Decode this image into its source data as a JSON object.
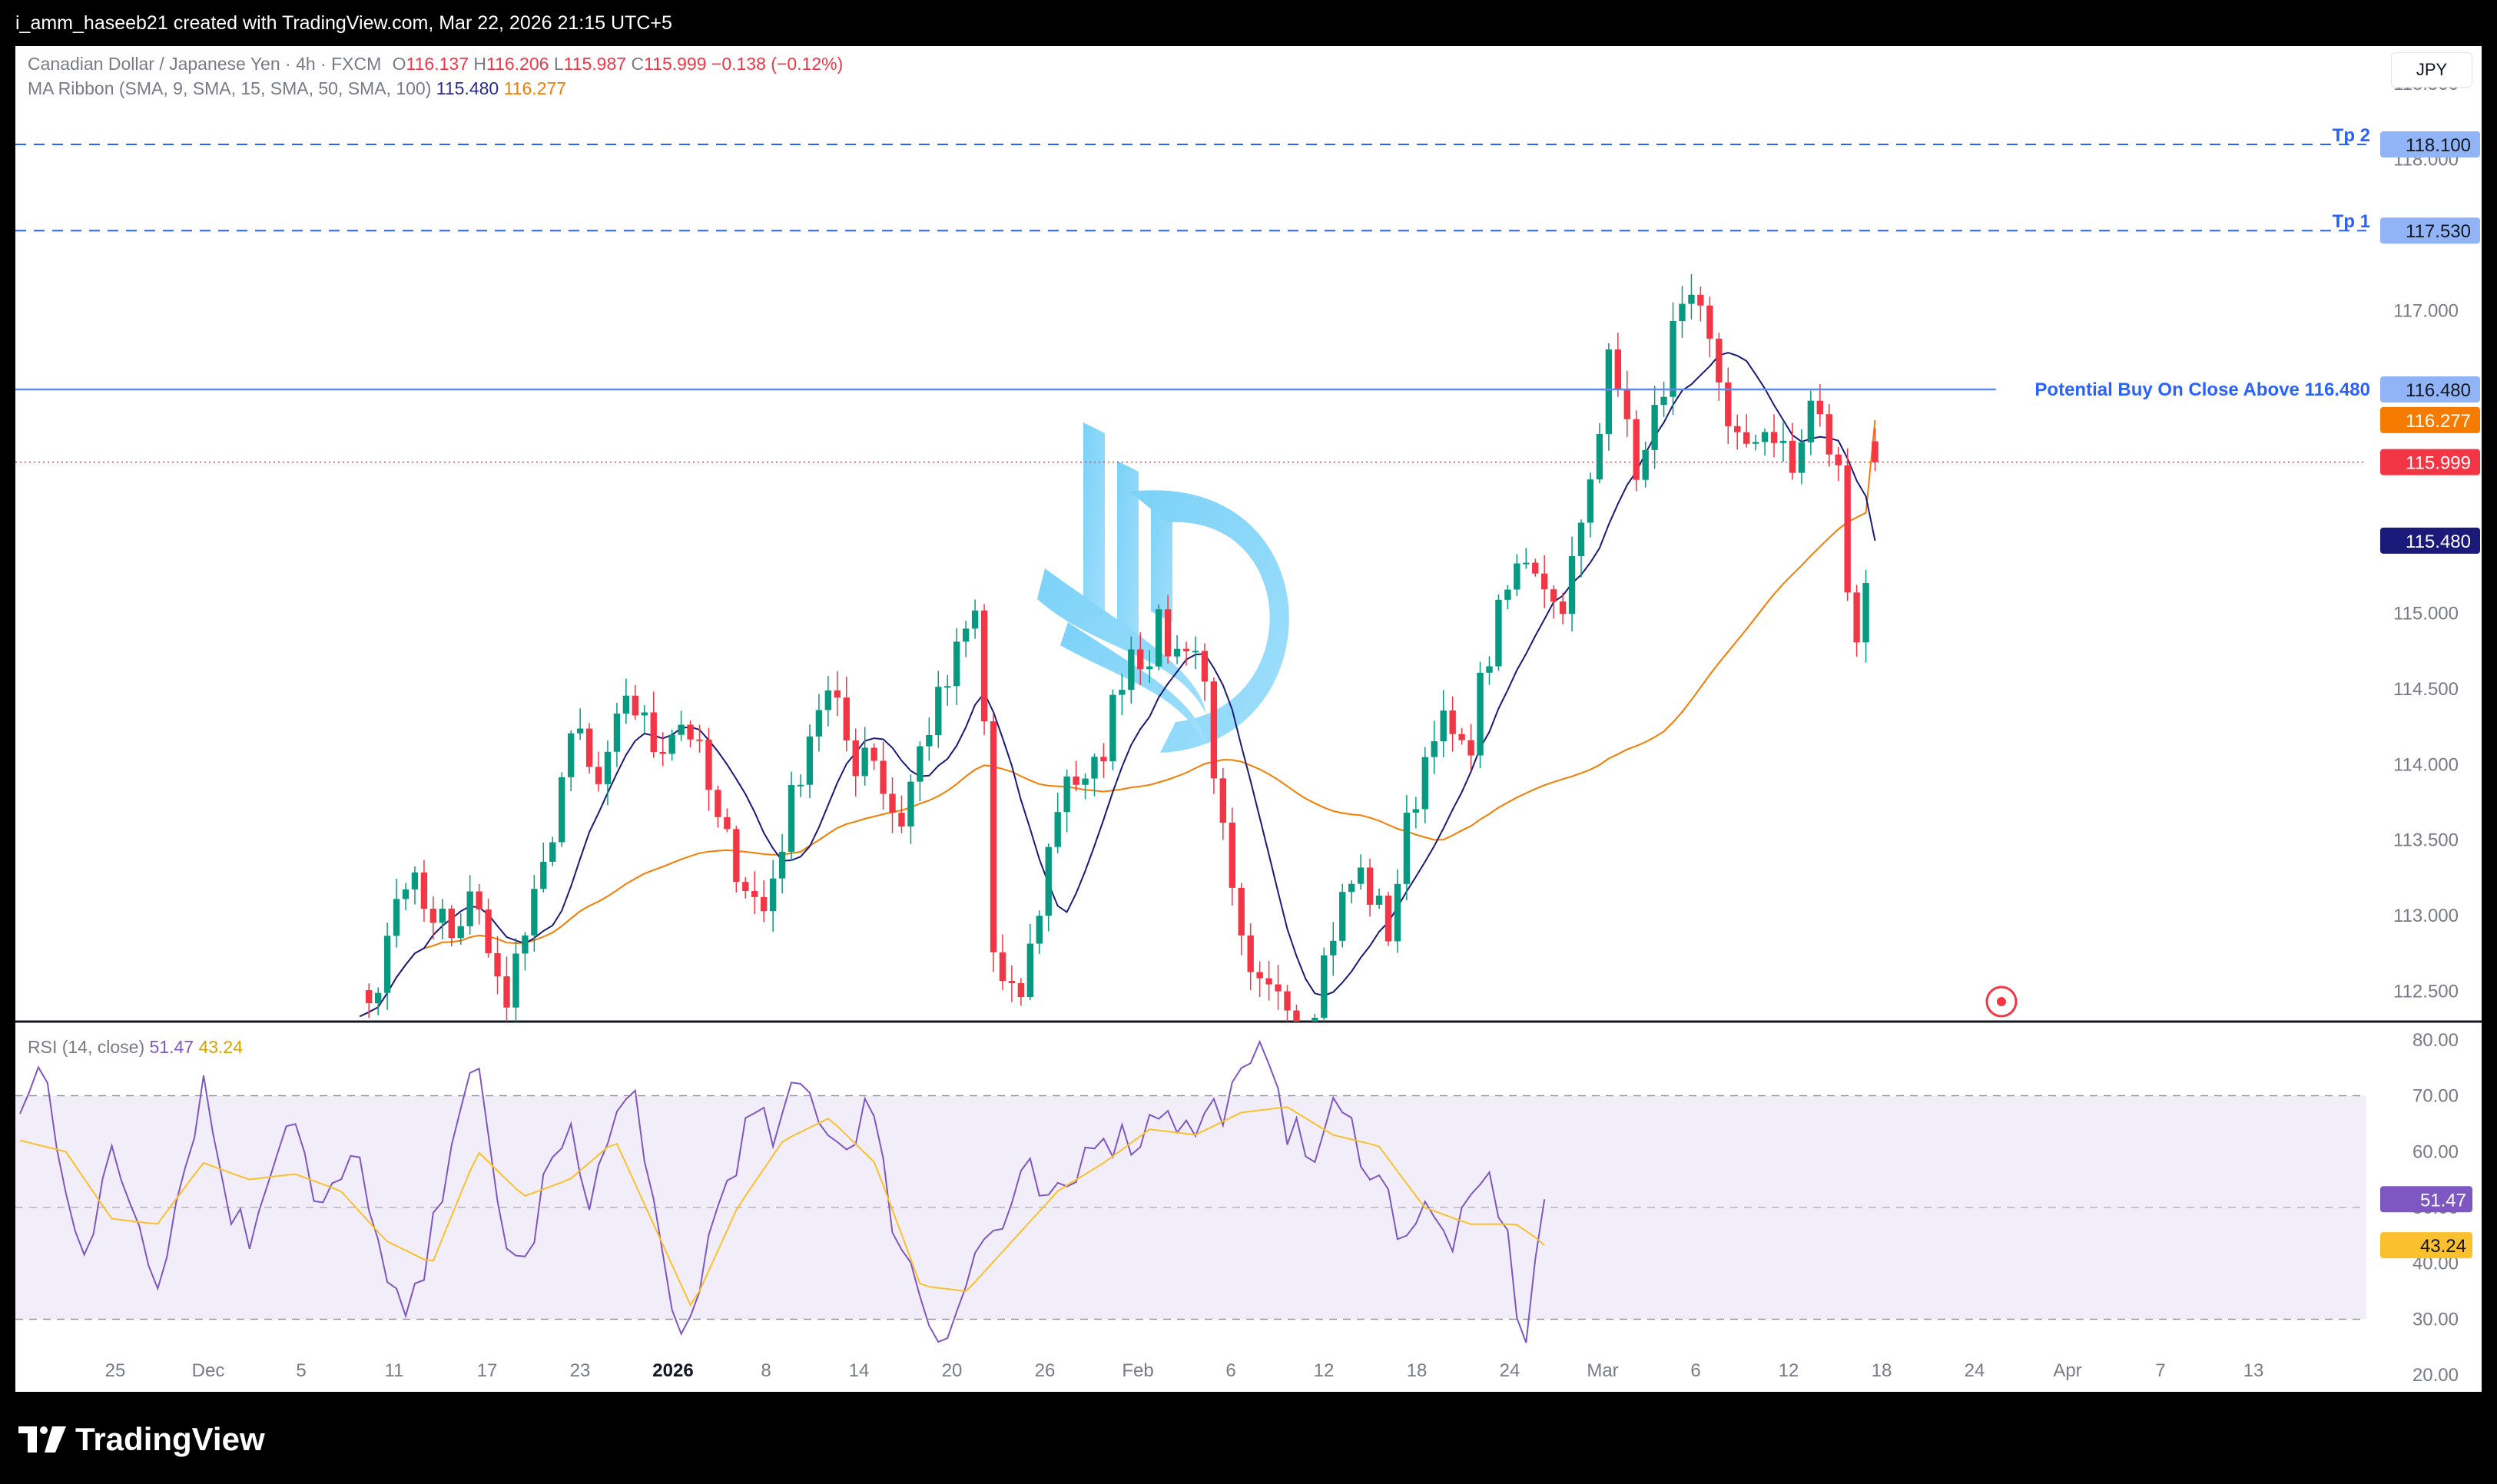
{
  "header": {
    "attribution": "i_amm_haseeb21 created with TradingView.com, Mar 22, 2026 21:15 UTC+5"
  },
  "legend": {
    "symbol": "Canadian Dollar / Japanese Yen · 4h · FXCM",
    "o_label": "O",
    "o_value": "116.137",
    "h_label": "H",
    "h_value": "116.206",
    "l_label": "L",
    "l_value": "115.987",
    "c_label": "C",
    "c_value": "115.999",
    "change": "−0.138 (−0.12%)",
    "ma_title": "MA Ribbon (SMA, 9, SMA, 15, SMA, 50, SMA, 100)",
    "ma_value_1": "115.480",
    "ma_value_2": "116.277"
  },
  "rsi_legend": {
    "title": "RSI (14, close)",
    "rsi_value": "51.47",
    "ma_value": "43.24"
  },
  "currency_button": "JPY",
  "footer": {
    "brand": "TradingView"
  },
  "colors": {
    "up": "#089981",
    "down": "#f23645",
    "sma_fast": "#1a1a7a",
    "sma_slow": "#f57c00",
    "rsi": "#7e57c2",
    "rsi_ma": "#fbc02d",
    "level_line": "#2962ff",
    "watermark": "#4fc3f7"
  },
  "chart_data": [
    {
      "type": "candlestick",
      "symbol": "CADJPY",
      "timeframe": "4h",
      "ylim": [
        112.3,
        118.75
      ],
      "price_ticks": [
        "118.500",
        "118.000",
        "117.000",
        "116.500",
        "115.000",
        "114.500",
        "114.000",
        "113.500",
        "113.000",
        "112.500"
      ],
      "x_ticks": [
        "25",
        "Dec",
        "5",
        "11",
        "17",
        "23",
        "2026",
        "8",
        "14",
        "20",
        "26",
        "Feb",
        "6",
        "12",
        "18",
        "24",
        "Mar",
        "6",
        "12",
        "18",
        "24",
        "Apr",
        "7",
        "13"
      ],
      "close_path": [
        [
          0,
          112.3
        ],
        [
          4,
          112.6
        ],
        [
          6,
          113.1
        ],
        [
          8,
          113.3
        ],
        [
          10,
          112.9
        ],
        [
          12,
          113.0
        ],
        [
          14,
          112.7
        ],
        [
          16,
          113.35
        ],
        [
          18,
          112.7
        ],
        [
          20,
          112.45
        ],
        [
          23,
          112.9
        ],
        [
          25,
          113.2
        ],
        [
          28,
          114.0
        ],
        [
          30,
          114.2
        ],
        [
          32,
          113.8
        ],
        [
          34,
          114.0
        ],
        [
          36,
          114.5
        ],
        [
          38,
          114.3
        ],
        [
          40,
          114.1
        ],
        [
          42,
          114.25
        ],
        [
          44,
          114.3
        ],
        [
          46,
          114.0
        ],
        [
          48,
          113.6
        ],
        [
          50,
          113.4
        ],
        [
          52,
          113.2
        ],
        [
          54,
          113.0
        ],
        [
          56,
          113.4
        ],
        [
          58,
          113.8
        ],
        [
          60,
          114.2
        ],
        [
          62,
          114.5
        ],
        [
          64,
          114.3
        ],
        [
          66,
          114.0
        ],
        [
          68,
          114.2
        ],
        [
          70,
          113.8
        ],
        [
          72,
          113.6
        ],
        [
          74,
          114.0
        ],
        [
          76,
          114.3
        ],
        [
          78,
          114.5
        ],
        [
          80,
          114.8
        ],
        [
          82,
          115.0
        ],
        [
          83,
          114.3
        ],
        [
          84,
          112.8
        ],
        [
          86,
          112.4
        ],
        [
          88,
          112.5
        ],
        [
          90,
          113.0
        ],
        [
          92,
          113.6
        ],
        [
          94,
          114.0
        ],
        [
          96,
          113.8
        ],
        [
          98,
          114.0
        ],
        [
          100,
          114.4
        ],
        [
          102,
          114.8
        ],
        [
          104,
          114.7
        ],
        [
          106,
          114.9
        ],
        [
          108,
          114.7
        ],
        [
          110,
          114.9
        ],
        [
          112,
          114.5
        ],
        [
          114,
          113.6
        ],
        [
          116,
          112.9
        ],
        [
          118,
          112.5
        ],
        [
          120,
          112.45
        ],
        [
          122,
          112.6
        ],
        [
          124,
          112.35
        ],
        [
          126,
          112.4
        ],
        [
          128,
          112.8
        ],
        [
          130,
          113.1
        ],
        [
          132,
          113.3
        ],
        [
          134,
          113.1
        ],
        [
          136,
          112.9
        ],
        [
          138,
          113.5
        ],
        [
          140,
          113.9
        ],
        [
          142,
          114.3
        ],
        [
          144,
          114.2
        ],
        [
          146,
          114.0
        ],
        [
          148,
          114.5
        ],
        [
          150,
          114.9
        ],
        [
          152,
          115.2
        ],
        [
          154,
          115.4
        ],
        [
          156,
          115.3
        ],
        [
          158,
          115.0
        ],
        [
          160,
          115.3
        ],
        [
          162,
          115.7
        ],
        [
          164,
          116.3
        ],
        [
          165,
          117.0
        ],
        [
          167,
          116.2
        ],
        [
          169,
          115.9
        ],
        [
          171,
          116.3
        ],
        [
          173,
          116.8
        ],
        [
          175,
          117.0
        ],
        [
          177,
          116.9
        ],
        [
          179,
          116.6
        ],
        [
          181,
          116.2
        ],
        [
          183,
          116.0
        ],
        [
          185,
          116.3
        ],
        [
          187,
          116.1
        ],
        [
          189,
          115.9
        ],
        [
          191,
          116.4
        ],
        [
          193,
          116.2
        ],
        [
          195,
          115.9
        ],
        [
          196,
          115.2
        ],
        [
          197,
          114.8
        ],
        [
          199,
          115.4
        ],
        [
          200,
          115.999
        ]
      ],
      "last": {
        "open": 116.137,
        "high": 116.206,
        "low": 115.987,
        "close": 115.999
      },
      "sma_fast_last": 115.48,
      "sma_slow_last": 116.277,
      "levels": [
        {
          "label": "Tp 2",
          "price": 118.1,
          "price_label": "118.100",
          "style": "dashed"
        },
        {
          "label": "Tp 1",
          "price": 117.53,
          "price_label": "117.530",
          "style": "dashed"
        },
        {
          "label": "Potential Buy On Close Above 116.480",
          "price": 116.48,
          "price_label": "116.480",
          "style": "solid"
        }
      ],
      "price_markers": [
        {
          "price": 116.277,
          "label": "116.277",
          "color": "#f57c00"
        },
        {
          "price": 115.999,
          "label": "115.999",
          "color": "#f23645"
        },
        {
          "price": 115.48,
          "label": "115.480",
          "color": "#1a1a7a"
        }
      ]
    },
    {
      "type": "line",
      "title": "RSI (14, close)",
      "ylim": [
        17,
        83
      ],
      "ticks": [
        "80.00",
        "70.00",
        "60.00",
        "50.00",
        "40.00",
        "30.00",
        "20.00"
      ],
      "band": [
        30,
        70
      ],
      "middle": 50,
      "series": [
        {
          "name": "RSI",
          "last": 51.47,
          "values_path": [
            [
              0,
              66
            ],
            [
              3,
              76
            ],
            [
              6,
              55
            ],
            [
              9,
              40
            ],
            [
              12,
              60
            ],
            [
              15,
              50
            ],
            [
              18,
              38
            ],
            [
              21,
              54
            ],
            [
              24,
              73
            ],
            [
              27,
              52
            ],
            [
              30,
              44
            ],
            [
              33,
              60
            ],
            [
              36,
              68
            ],
            [
              39,
              47
            ],
            [
              42,
              55
            ],
            [
              45,
              58
            ],
            [
              48,
              35
            ],
            [
              51,
              29
            ],
            [
              54,
              44
            ],
            [
              57,
              68
            ],
            [
              60,
              73
            ],
            [
              63,
              47
            ],
            [
              66,
              38
            ],
            [
              69,
              56
            ],
            [
              72,
              62
            ],
            [
              75,
              52
            ],
            [
              78,
              66
            ],
            [
              81,
              70
            ],
            [
              83,
              50
            ],
            [
              85,
              30
            ],
            [
              87,
              25
            ],
            [
              90,
              43
            ],
            [
              93,
              57
            ],
            [
              96,
              66
            ],
            [
              99,
              62
            ],
            [
              102,
              72
            ],
            [
              105,
              67
            ],
            [
              108,
              60
            ],
            [
              111,
              70
            ],
            [
              114,
              50
            ],
            [
              117,
              38
            ],
            [
              120,
              27
            ],
            [
              123,
              33
            ],
            [
              126,
              44
            ],
            [
              129,
              47
            ],
            [
              132,
              56
            ],
            [
              135,
              49
            ],
            [
              138,
              54
            ],
            [
              141,
              65
            ],
            [
              144,
              62
            ],
            [
              147,
              63
            ],
            [
              150,
              70
            ],
            [
              153,
              63
            ],
            [
              156,
              67
            ],
            [
              159,
              70
            ],
            [
              162,
              75
            ],
            [
              164,
              80
            ],
            [
              166,
              65
            ],
            [
              169,
              58
            ],
            [
              172,
              67
            ],
            [
              175,
              63
            ],
            [
              178,
              55
            ],
            [
              181,
              46
            ],
            [
              184,
              49
            ],
            [
              187,
              44
            ],
            [
              190,
              48
            ],
            [
              192,
              56
            ],
            [
              194,
              50
            ],
            [
              196,
              34
            ],
            [
              197,
              24
            ],
            [
              199,
              44
            ],
            [
              200,
              51.47
            ]
          ]
        },
        {
          "name": "RSI MA",
          "last": 43.24,
          "values_path": [
            [
              0,
              62
            ],
            [
              6,
              60
            ],
            [
              12,
              48
            ],
            [
              18,
              47
            ],
            [
              24,
              58
            ],
            [
              30,
              55
            ],
            [
              36,
              56
            ],
            [
              42,
              53
            ],
            [
              48,
              44
            ],
            [
              54,
              40
            ],
            [
              60,
              60
            ],
            [
              66,
              52
            ],
            [
              72,
              55
            ],
            [
              78,
              62
            ],
            [
              84,
              44
            ],
            [
              88,
              32
            ],
            [
              94,
              50
            ],
            [
              100,
              62
            ],
            [
              106,
              66
            ],
            [
              112,
              58
            ],
            [
              118,
              36
            ],
            [
              124,
              35
            ],
            [
              130,
              44
            ],
            [
              136,
              53
            ],
            [
              142,
              58
            ],
            [
              148,
              64
            ],
            [
              154,
              63
            ],
            [
              160,
              67
            ],
            [
              166,
              68
            ],
            [
              172,
              63
            ],
            [
              178,
              61
            ],
            [
              184,
              50
            ],
            [
              190,
              47
            ],
            [
              196,
              47
            ],
            [
              200,
              43.24
            ]
          ]
        }
      ]
    }
  ]
}
